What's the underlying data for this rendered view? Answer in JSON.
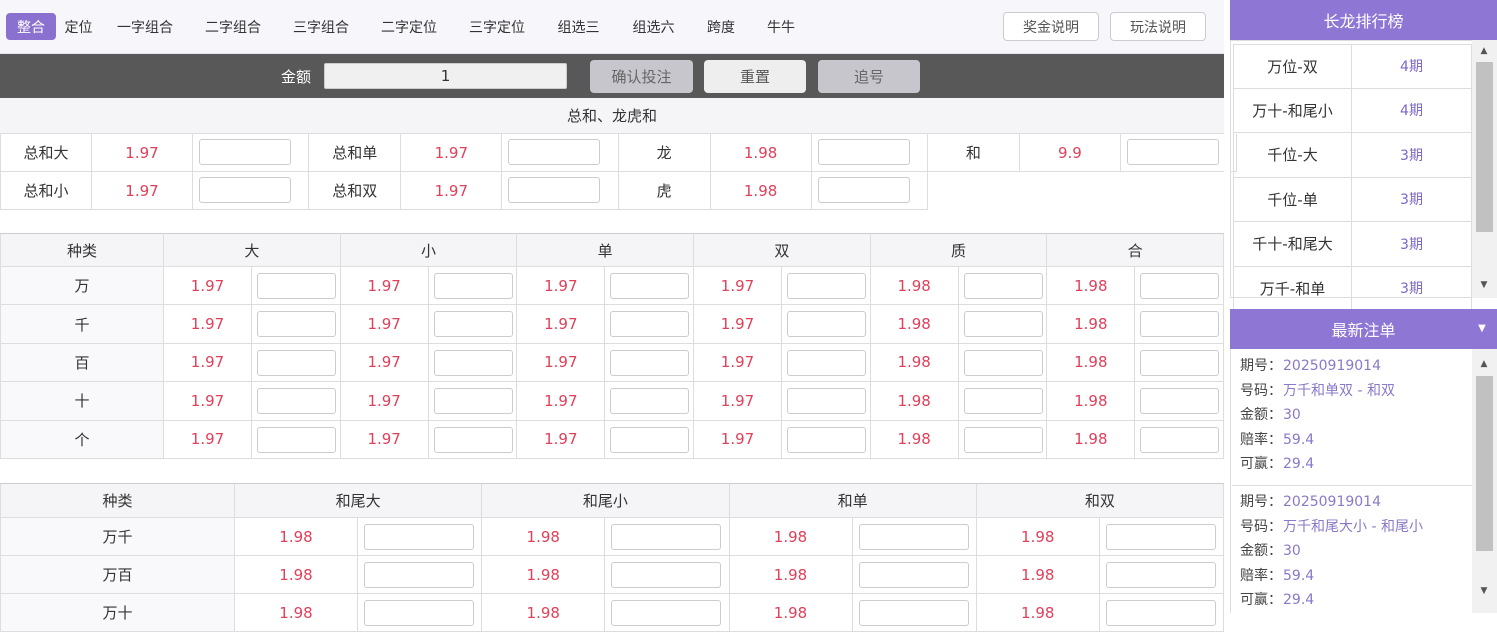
{
  "tabs": [
    "整合",
    "定位",
    "一字组合",
    "二字组合",
    "三字组合",
    "二字定位",
    "三字定位",
    "组选三",
    "组选六",
    "跨度",
    "牛牛"
  ],
  "top_buttons": [
    "奖金说明",
    "玩法说明"
  ],
  "bet_bar": {
    "label": "金额",
    "amount": 1,
    "buttons": [
      "确认投注",
      "重置",
      "追号"
    ]
  },
  "section1": {
    "title": "总和、龙虎和",
    "rows": [
      [
        {
          "name": "总和大",
          "odds": 1.97
        },
        {
          "name": "总和单",
          "odds": 1.97
        },
        {
          "name": "龙",
          "odds": 1.98
        },
        {
          "name": "和",
          "odds": 9.9
        }
      ],
      [
        {
          "name": "总和小",
          "odds": 1.97
        },
        {
          "name": "总和双",
          "odds": 1.97
        },
        {
          "name": "虎",
          "odds": 1.98
        }
      ]
    ]
  },
  "section2": {
    "header": [
      "种类",
      "大",
      "小",
      "单",
      "双",
      "质",
      "合"
    ],
    "rows": [
      {
        "name": "万",
        "odds": [
          1.97,
          1.97,
          1.97,
          1.97,
          1.98,
          1.98
        ]
      },
      {
        "name": "千",
        "odds": [
          1.97,
          1.97,
          1.97,
          1.97,
          1.98,
          1.98
        ]
      },
      {
        "name": "百",
        "odds": [
          1.97,
          1.97,
          1.97,
          1.97,
          1.98,
          1.98
        ]
      },
      {
        "name": "十",
        "odds": [
          1.97,
          1.97,
          1.97,
          1.97,
          1.98,
          1.98
        ]
      },
      {
        "name": "个",
        "odds": [
          1.97,
          1.97,
          1.97,
          1.97,
          1.98,
          1.98
        ]
      }
    ]
  },
  "section3": {
    "header": [
      "种类",
      "和尾大",
      "和尾小",
      "和单",
      "和双"
    ],
    "rows": [
      {
        "name": "万千",
        "odds": [
          1.98,
          1.98,
          1.98,
          1.98
        ]
      },
      {
        "name": "万百",
        "odds": [
          1.98,
          1.98,
          1.98,
          1.98
        ]
      },
      {
        "name": "万十",
        "odds": [
          1.98,
          1.98,
          1.98,
          1.98
        ]
      }
    ]
  },
  "ranking": {
    "title": "长龙排行榜",
    "rows": [
      [
        "万位-双",
        "4期"
      ],
      [
        "万十-和尾小",
        "4期"
      ],
      [
        "千位-大",
        "3期"
      ],
      [
        "千位-单",
        "3期"
      ],
      [
        "千十-和尾大",
        "3期"
      ],
      [
        "万千-和单",
        "3期"
      ]
    ]
  },
  "latest": {
    "title": "最新注单",
    "entries": [
      [
        [
          "期号：",
          "20250919014"
        ],
        [
          "号码：",
          "万千和单双 - 和双"
        ],
        [
          "金额：",
          "30"
        ],
        [
          "赔率：",
          "59.4"
        ],
        [
          "可赢：",
          "29.4"
        ]
      ],
      [
        [
          "期号：",
          "20250919014"
        ],
        [
          "号码：",
          "万千和尾大小 - 和尾小"
        ],
        [
          "金额：",
          "30"
        ],
        [
          "赔率：",
          "59.4"
        ],
        [
          "可赢：",
          "29.4"
        ]
      ]
    ]
  }
}
